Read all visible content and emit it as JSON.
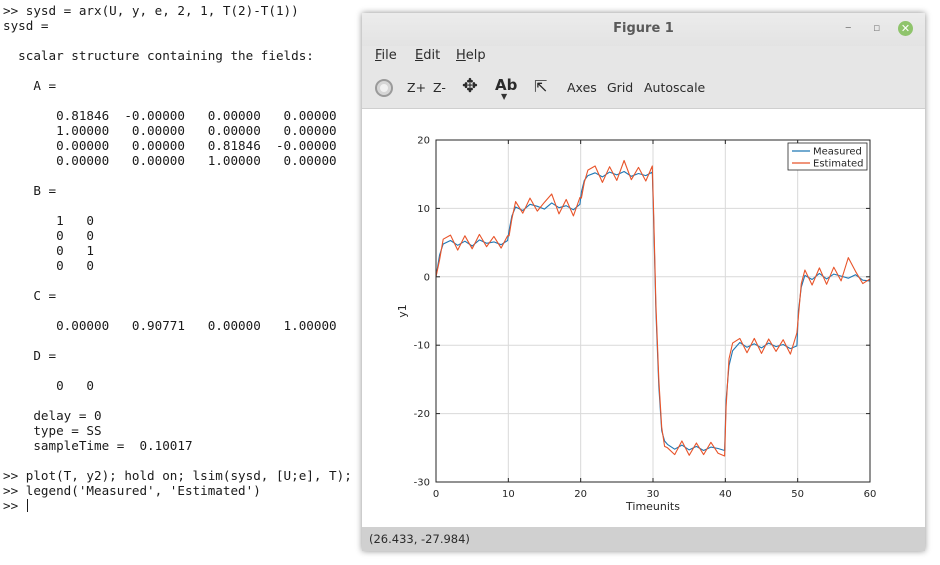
{
  "terminal": {
    "lines": [
      ">> sysd = arx(U, y, e, 2, 1, T(2)-T(1))",
      "sysd =",
      "",
      "  scalar structure containing the fields:",
      "",
      "    A =",
      "",
      "       0.81846  -0.00000   0.00000   0.00000",
      "       1.00000   0.00000   0.00000   0.00000",
      "       0.00000   0.00000   0.81846  -0.00000",
      "       0.00000   0.00000   1.00000   0.00000",
      "",
      "    B =",
      "",
      "       1   0",
      "       0   0",
      "       0   1",
      "       0   0",
      "",
      "    C =",
      "",
      "       0.00000   0.90771   0.00000   1.00000",
      "",
      "    D =",
      "",
      "       0   0",
      "",
      "    delay = 0",
      "    type = SS",
      "    sampleTime =  0.10017",
      "",
      ">> plot(T, y2); hold on; lsim(sysd, [U;e], T);",
      ">> legend('Measured', 'Estimated')",
      ">> "
    ]
  },
  "window": {
    "title": "Figure 1",
    "minimize_glyph": "–",
    "maximize_glyph": "▫",
    "close_glyph": "✕"
  },
  "menu": {
    "file": "File",
    "edit": "Edit",
    "help": "Help"
  },
  "toolbar": {
    "rotate_icon": "rotate-icon",
    "zoom_in": "Z+",
    "zoom_out": "Z-",
    "pan_glyph": "✥",
    "text_label": "Ab",
    "text_arrow": "▼",
    "select_glyph": "⇱",
    "axes": "Axes",
    "grid": "Grid",
    "autoscale": "Autoscale"
  },
  "status": {
    "coords": "(26.433, -27.984)"
  },
  "colors": {
    "measured": "#1f77b4",
    "estimated": "#e8542a"
  },
  "chart_data": {
    "type": "line",
    "xlabel": "Timeunits",
    "ylabel": "y1",
    "xlim": [
      0,
      60
    ],
    "ylim": [
      -30,
      20
    ],
    "xticks": [
      0,
      10,
      20,
      30,
      40,
      50,
      60
    ],
    "yticks": [
      20,
      10,
      0,
      -10,
      -20,
      -30
    ],
    "grid": true,
    "legend_position": "top-right",
    "series": [
      {
        "name": "Measured",
        "color": "#1f77b4",
        "x": [
          0,
          0.5,
          1,
          2,
          3,
          4,
          5,
          6,
          7,
          8,
          9,
          9.9,
          10.1,
          10.5,
          11,
          12,
          13,
          14,
          15,
          16,
          17,
          18,
          19,
          19.9,
          20.1,
          20.5,
          21,
          22,
          23,
          24,
          25,
          26,
          27,
          28,
          29,
          29.9,
          30.1,
          30.4,
          30.8,
          31.2,
          31.6,
          32,
          33,
          34,
          35,
          36,
          37,
          38,
          39,
          39.9,
          40.1,
          40.5,
          41,
          42,
          43,
          44,
          45,
          46,
          47,
          48,
          49,
          49.9,
          50.1,
          50.5,
          51,
          52,
          53,
          54,
          55,
          56,
          57,
          58,
          59,
          60
        ],
        "y": [
          0,
          3.2,
          4.8,
          5.3,
          4.6,
          5.2,
          4.5,
          5.4,
          4.9,
          5.1,
          4.7,
          5.3,
          6.8,
          8.9,
          10.2,
          9.7,
          10.6,
          10.3,
          9.9,
          10.8,
          10.1,
          10.4,
          9.8,
          10.6,
          12.4,
          14.1,
          14.8,
          15.2,
          14.6,
          15.3,
          14.9,
          15.4,
          14.7,
          15.1,
          14.8,
          15.3,
          8.0,
          -5.0,
          -16.0,
          -22.5,
          -24.0,
          -24.5,
          -25.2,
          -24.6,
          -25.3,
          -24.8,
          -25.4,
          -24.9,
          -25.1,
          -25.4,
          -18.0,
          -13.0,
          -10.8,
          -9.6,
          -10.3,
          -9.8,
          -10.4,
          -9.7,
          -10.2,
          -9.9,
          -10.5,
          -10.1,
          -5.0,
          -1.5,
          0.2,
          -0.4,
          0.5,
          -0.3,
          0.4,
          0.1,
          -0.2,
          0.3,
          -0.5,
          -0.6
        ]
      },
      {
        "name": "Estimated",
        "color": "#e8542a",
        "x": [
          0,
          0.5,
          1,
          2,
          3,
          4,
          5,
          6,
          7,
          8,
          9,
          9.9,
          10.1,
          10.5,
          11,
          12,
          13,
          14,
          15,
          16,
          17,
          18,
          19,
          19.9,
          20.1,
          20.5,
          21,
          22,
          23,
          24,
          25,
          26,
          27,
          28,
          29,
          29.9,
          30.1,
          30.4,
          30.8,
          31.2,
          31.6,
          32,
          33,
          34,
          35,
          36,
          37,
          38,
          39,
          39.9,
          40.1,
          40.5,
          41,
          42,
          43,
          44,
          45,
          46,
          47,
          48,
          49,
          49.9,
          50.1,
          50.5,
          51,
          52,
          53,
          54,
          55,
          56,
          57,
          58,
          59,
          60
        ],
        "y": [
          0,
          2.5,
          5.5,
          6.1,
          3.9,
          6.0,
          4.1,
          6.2,
          4.4,
          5.9,
          4.2,
          6.0,
          6.0,
          8.5,
          11.0,
          9.3,
          11.5,
          9.6,
          10.9,
          12.1,
          9.2,
          11.3,
          8.9,
          11.6,
          11.5,
          13.8,
          15.6,
          16.2,
          13.8,
          16.1,
          14.1,
          17.0,
          14.2,
          16.0,
          14.0,
          16.2,
          9.0,
          -4.0,
          -15.0,
          -22.0,
          -24.8,
          -25.0,
          -26.0,
          -24.0,
          -26.1,
          -24.3,
          -26.0,
          -24.2,
          -25.8,
          -26.2,
          -19.0,
          -12.0,
          -9.7,
          -9.0,
          -11.1,
          -9.0,
          -11.2,
          -9.1,
          -10.9,
          -9.2,
          -11.3,
          -8.2,
          -5.8,
          -1.0,
          1.0,
          -1.2,
          1.3,
          -1.1,
          1.4,
          -0.6,
          2.8,
          0.8,
          -1.0,
          -0.3
        ]
      }
    ]
  }
}
